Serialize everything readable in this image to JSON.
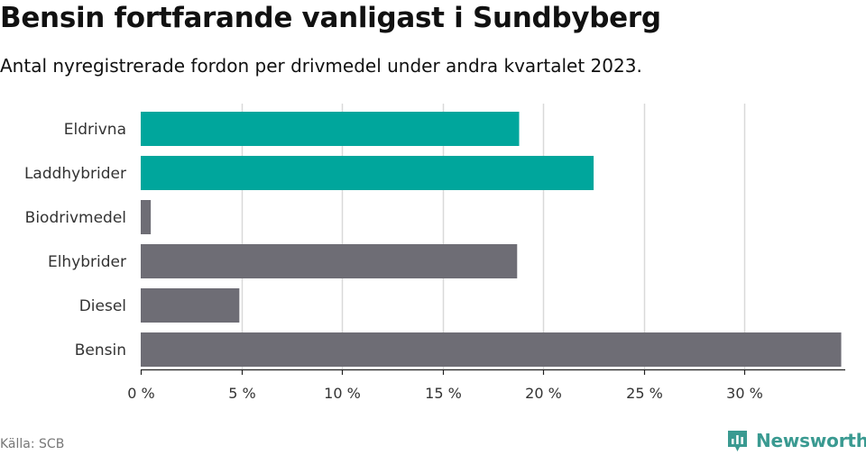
{
  "header": {
    "title": "Bensin fortfarande vanligast i Sundbyberg",
    "subtitle": "Antal nyregistrerade fordon per drivmedel under andra kvartalet 2023."
  },
  "footer": {
    "source": "Källa: SCB",
    "brand": "Newsworthy",
    "brand_icon": "bar-chart-badge-icon"
  },
  "colors": {
    "highlight": "#00a69c",
    "default": "#6e6d75",
    "grid": "#d9d9d9",
    "brand": "#3a9a91"
  },
  "chart_data": {
    "type": "bar",
    "orientation": "horizontal",
    "title": "Bensin fortfarande vanligast i Sundbyberg",
    "subtitle": "Antal nyregistrerade fordon per drivmedel under andra kvartalet 2023.",
    "xlabel": "",
    "ylabel": "",
    "unit": "%",
    "xlim": [
      0,
      35
    ],
    "xticks": [
      0,
      5,
      10,
      15,
      20,
      25,
      30
    ],
    "xtick_labels": [
      "0 %",
      "5 %",
      "10 %",
      "15 %",
      "20 %",
      "25 %",
      "30 %"
    ],
    "grid": true,
    "categories": [
      "Eldrivna",
      "Laddhybrider",
      "Biodrivmedel",
      "Elhybrider",
      "Diesel",
      "Bensin"
    ],
    "values": [
      18.8,
      22.5,
      0.5,
      18.7,
      4.9,
      34.8
    ],
    "highlighted": [
      true,
      true,
      false,
      false,
      false,
      false
    ]
  }
}
